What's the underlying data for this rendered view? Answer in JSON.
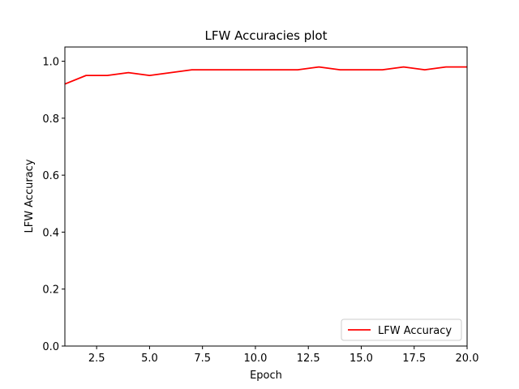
{
  "chart_data": {
    "type": "line",
    "title": "LFW Accuracies plot",
    "xlabel": "Epoch",
    "ylabel": "LFW Accuracy",
    "xlim": [
      1,
      20
    ],
    "ylim": [
      0,
      1.05
    ],
    "xticks": [
      2.5,
      5.0,
      7.5,
      10.0,
      12.5,
      15.0,
      17.5,
      20.0
    ],
    "xtick_labels": [
      "2.5",
      "5.0",
      "7.5",
      "10.0",
      "12.5",
      "15.0",
      "17.5",
      "20.0"
    ],
    "yticks": [
      0.0,
      0.2,
      0.4,
      0.6,
      0.8,
      1.0
    ],
    "ytick_labels": [
      "0.0",
      "0.2",
      "0.4",
      "0.6",
      "0.8",
      "1.0"
    ],
    "grid": false,
    "legend_position": "lower-right",
    "series": [
      {
        "name": "LFW Accuracy",
        "color": "#ff0000",
        "x": [
          1,
          2,
          3,
          4,
          5,
          6,
          7,
          8,
          9,
          10,
          11,
          12,
          13,
          14,
          15,
          16,
          17,
          18,
          19,
          20
        ],
        "y": [
          0.92,
          0.95,
          0.95,
          0.96,
          0.95,
          0.96,
          0.97,
          0.97,
          0.97,
          0.97,
          0.97,
          0.97,
          0.98,
          0.97,
          0.97,
          0.97,
          0.98,
          0.97,
          0.98,
          0.98
        ]
      }
    ]
  }
}
